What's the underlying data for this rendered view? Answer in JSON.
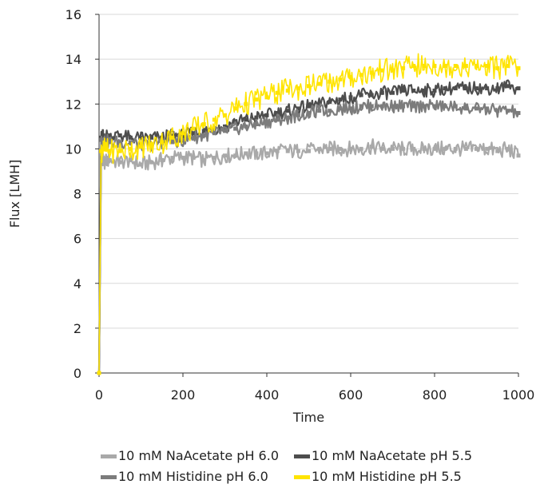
{
  "chart_data": {
    "type": "line",
    "title": "",
    "xlabel": "Time",
    "ylabel": "Flux [LMH]",
    "xlim": [
      0,
      1000
    ],
    "ylim": [
      0,
      16
    ],
    "x_ticks": [
      "0",
      "200",
      "400",
      "600",
      "800",
      "1000"
    ],
    "y_ticks": [
      "0",
      "2",
      "4",
      "6",
      "8",
      "10",
      "12",
      "14",
      "16"
    ],
    "grid": "horizontal",
    "legend_position": "bottom",
    "x": [
      0,
      5,
      10,
      25,
      50,
      75,
      100,
      125,
      150,
      175,
      200,
      225,
      250,
      275,
      300,
      325,
      350,
      375,
      400,
      425,
      450,
      475,
      500,
      525,
      550,
      575,
      600,
      625,
      650,
      675,
      700,
      725,
      750,
      775,
      800,
      825,
      850,
      875,
      900,
      925,
      950,
      975,
      1000
    ],
    "series": [
      {
        "name": "10 mM NaAcetate pH 6.0",
        "color": "#a9a9a9",
        "values": [
          0,
          9.6,
          9.4,
          9.5,
          9.4,
          9.5,
          9.3,
          9.4,
          9.5,
          9.6,
          9.6,
          9.6,
          9.5,
          9.6,
          9.7,
          9.7,
          9.8,
          9.8,
          9.8,
          9.9,
          9.9,
          9.9,
          9.9,
          10.0,
          10.0,
          10.0,
          10.0,
          10.0,
          10.1,
          10.0,
          10.0,
          10.0,
          10.0,
          10.0,
          10.0,
          10.0,
          10.0,
          10.0,
          10.0,
          10.0,
          9.9,
          10.0,
          9.7
        ]
      },
      {
        "name": "10 mM NaAcetate pH 5.5",
        "color": "#4d4d4d",
        "values": [
          0,
          10.5,
          10.6,
          10.6,
          10.6,
          10.5,
          10.5,
          10.5,
          10.5,
          10.6,
          10.6,
          10.7,
          10.8,
          10.9,
          11.0,
          11.2,
          11.3,
          11.4,
          11.5,
          11.6,
          11.7,
          11.8,
          11.9,
          12.0,
          12.1,
          12.2,
          12.3,
          12.4,
          12.4,
          12.5,
          12.5,
          12.6,
          12.6,
          12.6,
          12.6,
          12.7,
          12.7,
          12.7,
          12.7,
          12.7,
          12.7,
          12.8,
          12.7
        ]
      },
      {
        "name": "10 mM Histidine pH 6.0",
        "color": "#7c7c7c",
        "values": [
          0,
          10.4,
          10.4,
          10.3,
          10.3,
          10.3,
          10.2,
          10.2,
          10.3,
          10.3,
          10.4,
          10.5,
          10.6,
          10.7,
          10.8,
          10.9,
          11.0,
          11.1,
          11.2,
          11.3,
          11.4,
          11.5,
          11.6,
          11.7,
          11.7,
          11.8,
          11.8,
          11.9,
          11.9,
          11.9,
          11.9,
          11.9,
          11.9,
          11.9,
          11.9,
          11.9,
          11.9,
          11.8,
          11.8,
          11.8,
          11.7,
          11.7,
          11.6
        ]
      },
      {
        "name": "10 mM Histidine pH 5.5",
        "color": "#ffe400",
        "values": [
          0,
          9.9,
          10.0,
          9.9,
          9.9,
          10.0,
          10.1,
          10.2,
          10.3,
          10.5,
          10.7,
          10.9,
          11.1,
          11.3,
          11.5,
          11.8,
          12.0,
          12.2,
          12.3,
          12.5,
          12.6,
          12.7,
          12.8,
          12.9,
          13.0,
          13.1,
          13.2,
          13.3,
          13.4,
          13.5,
          13.5,
          13.6,
          13.7,
          13.7,
          13.7,
          13.7,
          13.7,
          13.7,
          13.7,
          13.7,
          13.6,
          13.7,
          13.6
        ]
      }
    ]
  }
}
